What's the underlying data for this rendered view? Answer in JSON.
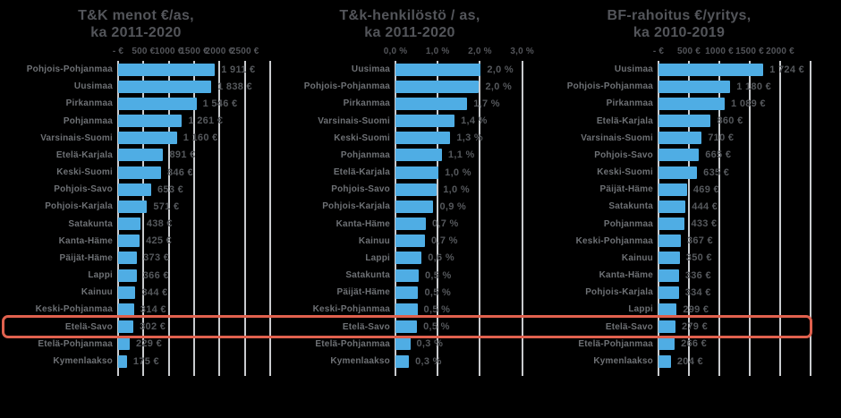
{
  "colors": {
    "background": "#000000",
    "bar": "#4fade4",
    "gridline": "#c9cbce",
    "title_text": "#53555a",
    "label_text": "#6e7175",
    "value_text": "#55585c",
    "highlight_box": "#e0614e"
  },
  "highlight": {
    "region": "Etelä-Savo",
    "spans_all_charts": true
  },
  "chart_data": [
    {
      "type": "bar",
      "orientation": "horizontal",
      "title": "T&K menot €/as,",
      "subtitle": "ka 2011-2020",
      "legend": "none",
      "grid": "vertical",
      "axis": {
        "plot_max": 3000,
        "gridlines": [
          0,
          500,
          1000,
          1500,
          2000,
          2500,
          3000
        ],
        "ticks": [
          {
            "label": "- €",
            "value": 0
          },
          {
            "label": "500 €",
            "value": 500
          },
          {
            "label": "1000 €",
            "value": 1000
          },
          {
            "label": "1500 €",
            "value": 1500
          },
          {
            "label": "2000 €",
            "value": 2000
          },
          {
            "label": "2500 €",
            "value": 2500
          }
        ]
      },
      "highlight_region": "Etelä-Savo",
      "rows": [
        {
          "region": "Pohjois-Pohjanmaa",
          "value": 1911,
          "display": "1 911 €"
        },
        {
          "region": "Uusimaa",
          "value": 1838,
          "display": "1 838 €"
        },
        {
          "region": "Pirkanmaa",
          "value": 1546,
          "display": "1 546 €"
        },
        {
          "region": "Pohjanmaa",
          "value": 1261,
          "display": "1 261 €"
        },
        {
          "region": "Varsinais-Suomi",
          "value": 1160,
          "display": "1 160 €"
        },
        {
          "region": "Etelä-Karjala",
          "value": 891,
          "display": "891 €"
        },
        {
          "region": "Keski-Suomi",
          "value": 846,
          "display": "846 €"
        },
        {
          "region": "Pohjois-Savo",
          "value": 653,
          "display": "653 €"
        },
        {
          "region": "Pohjois-Karjala",
          "value": 571,
          "display": "571 €"
        },
        {
          "region": "Satakunta",
          "value": 438,
          "display": "438 €"
        },
        {
          "region": "Kanta-Häme",
          "value": 425,
          "display": "425 €"
        },
        {
          "region": "Päijät-Häme",
          "value": 373,
          "display": "373 €"
        },
        {
          "region": "Lappi",
          "value": 366,
          "display": "366 €"
        },
        {
          "region": "Kainuu",
          "value": 344,
          "display": "344 €"
        },
        {
          "region": "Keski-Pohjanmaa",
          "value": 314,
          "display": "314 €"
        },
        {
          "region": "Etelä-Savo",
          "value": 302,
          "display": "302 €"
        },
        {
          "region": "Etelä-Pohjanmaa",
          "value": 229,
          "display": "229 €"
        },
        {
          "region": "Kymenlaakso",
          "value": 175,
          "display": "175 €"
        }
      ]
    },
    {
      "type": "bar",
      "orientation": "horizontal",
      "title": "T&k-henkilöstö / as,",
      "subtitle": "ka 2011-2020",
      "legend": "none",
      "grid": "vertical",
      "axis": {
        "plot_max": 3.05,
        "gridlines": [
          0,
          1,
          2,
          3
        ],
        "ticks": [
          {
            "label": "0,0 %",
            "value": 0
          },
          {
            "label": "1,0 %",
            "value": 1
          },
          {
            "label": "2,0 %",
            "value": 2
          },
          {
            "label": "3,0 %",
            "value": 3
          }
        ]
      },
      "highlight_region": "Etelä-Savo",
      "rows": [
        {
          "region": "Uusimaa",
          "value": 2.02,
          "display": "2,0 %"
        },
        {
          "region": "Pohjois-Pohjanmaa",
          "value": 1.98,
          "display": "2,0 %"
        },
        {
          "region": "Pirkanmaa",
          "value": 1.7,
          "display": "1,7 %"
        },
        {
          "region": "Varsinais-Suomi",
          "value": 1.4,
          "display": "1,4 %"
        },
        {
          "region": "Keski-Suomi",
          "value": 1.3,
          "display": "1,3 %"
        },
        {
          "region": "Pohjanmaa",
          "value": 1.1,
          "display": "1,1 %"
        },
        {
          "region": "Etelä-Karjala",
          "value": 1.02,
          "display": "1,0 %"
        },
        {
          "region": "Pohjois-Savo",
          "value": 0.98,
          "display": "1,0 %"
        },
        {
          "region": "Pohjois-Karjala",
          "value": 0.9,
          "display": "0,9 %"
        },
        {
          "region": "Kanta-Häme",
          "value": 0.72,
          "display": "0,7 %"
        },
        {
          "region": "Kainuu",
          "value": 0.7,
          "display": "0,7 %"
        },
        {
          "region": "Lappi",
          "value": 0.62,
          "display": "0,6 %"
        },
        {
          "region": "Satakunta",
          "value": 0.55,
          "display": "0,5 %"
        },
        {
          "region": "Päijät-Häme",
          "value": 0.54,
          "display": "0,5 %"
        },
        {
          "region": "Keski-Pohjanmaa",
          "value": 0.52,
          "display": "0,5 %"
        },
        {
          "region": "Etelä-Savo",
          "value": 0.51,
          "display": "0,5 %"
        },
        {
          "region": "Etelä-Pohjanmaa",
          "value": 0.35,
          "display": "0,3 %"
        },
        {
          "region": "Kymenlaakso",
          "value": 0.32,
          "display": "0,3 %"
        }
      ]
    },
    {
      "type": "bar",
      "orientation": "horizontal",
      "title": "BF-rahoitus €/yritys,",
      "subtitle": "ka 2010-2019",
      "legend": "none",
      "grid": "vertical",
      "axis": {
        "plot_max": 2500,
        "gridlines": [
          0,
          500,
          1000,
          1500,
          2000,
          2500
        ],
        "ticks": [
          {
            "label": "- €",
            "value": 0
          },
          {
            "label": "500 €",
            "value": 500
          },
          {
            "label": "1000 €",
            "value": 1000
          },
          {
            "label": "1500 €",
            "value": 1500
          },
          {
            "label": "2000 €",
            "value": 2000
          }
        ]
      },
      "highlight_region": "Etelä-Savo",
      "rows": [
        {
          "region": "Uusimaa",
          "value": 1724,
          "display": "1 724 €"
        },
        {
          "region": "Pohjois-Pohjanmaa",
          "value": 1180,
          "display": "1 180 €"
        },
        {
          "region": "Pirkanmaa",
          "value": 1089,
          "display": "1 089 €"
        },
        {
          "region": "Etelä-Karjala",
          "value": 860,
          "display": "860 €"
        },
        {
          "region": "Varsinais-Suomi",
          "value": 710,
          "display": "710 €"
        },
        {
          "region": "Pohjois-Savo",
          "value": 665,
          "display": "665 €"
        },
        {
          "region": "Keski-Suomi",
          "value": 635,
          "display": "635 €"
        },
        {
          "region": "Päijät-Häme",
          "value": 469,
          "display": "469 €"
        },
        {
          "region": "Satakunta",
          "value": 444,
          "display": "444 €"
        },
        {
          "region": "Pohjanmaa",
          "value": 433,
          "display": "433 €"
        },
        {
          "region": "Keski-Pohjanmaa",
          "value": 367,
          "display": "367 €"
        },
        {
          "region": "Kainuu",
          "value": 350,
          "display": "350 €"
        },
        {
          "region": "Kanta-Häme",
          "value": 336,
          "display": "336 €"
        },
        {
          "region": "Pohjois-Karjala",
          "value": 334,
          "display": "334 €"
        },
        {
          "region": "Lappi",
          "value": 299,
          "display": "299 €"
        },
        {
          "region": "Etelä-Savo",
          "value": 279,
          "display": "279 €"
        },
        {
          "region": "Etelä-Pohjanmaa",
          "value": 266,
          "display": "266 €"
        },
        {
          "region": "Kymenlaakso",
          "value": 204,
          "display": "204 €"
        }
      ]
    }
  ]
}
